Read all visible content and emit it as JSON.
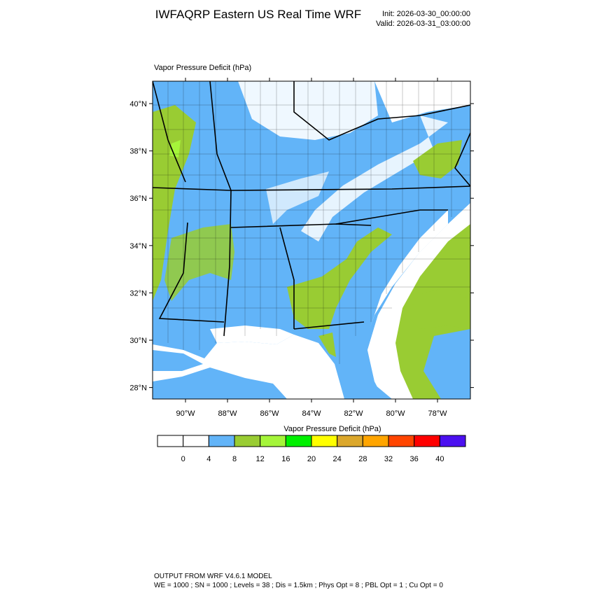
{
  "header": {
    "title": "IWFAQRP Eastern US Real Time WRF",
    "init": "Init: 2026-03-30_00:00:00",
    "valid": "Valid: 2026-03-31_03:00:00"
  },
  "map": {
    "field_label": "Vapor Pressure Deficit   (hPa)",
    "lat_ticks": [
      {
        "value": 40,
        "label": "40°N"
      },
      {
        "value": 38,
        "label": "38°N"
      },
      {
        "value": 36,
        "label": "36°N"
      },
      {
        "value": 34,
        "label": "34°N"
      },
      {
        "value": 32,
        "label": "32°N"
      },
      {
        "value": 30,
        "label": "30°N"
      },
      {
        "value": 28,
        "label": "28°N"
      }
    ],
    "lon_ticks": [
      {
        "value": -90,
        "label": "90°W"
      },
      {
        "value": -88,
        "label": "88°W"
      },
      {
        "value": -86,
        "label": "86°W"
      },
      {
        "value": -84,
        "label": "84°W"
      },
      {
        "value": -82,
        "label": "82°W"
      },
      {
        "value": -80,
        "label": "80°W"
      },
      {
        "value": -78,
        "label": "78°W"
      }
    ]
  },
  "colorbar": {
    "title": "Vapor Pressure Deficit  (hPa)",
    "levels": [
      0,
      4,
      8,
      12,
      16,
      20,
      24,
      28,
      32,
      36,
      40
    ],
    "colors": [
      "#ffffff",
      "#ffffff",
      "#62b4f8",
      "#99cc33",
      "#a5f53a",
      "#00f000",
      "#ffff00",
      "#dba72b",
      "#ffa500",
      "#ff4500",
      "#ff0000",
      "#4b10f0"
    ]
  },
  "footer": {
    "line1": "OUTPUT FROM WRF V4.6.1 MODEL",
    "line2": "WE = 1000 ; SN = 1000 ; Levels = 38 ; Dis = 1.5km ; Phys Opt = 8 ; PBL Opt = 1 ; Cu Opt = 0"
  }
}
